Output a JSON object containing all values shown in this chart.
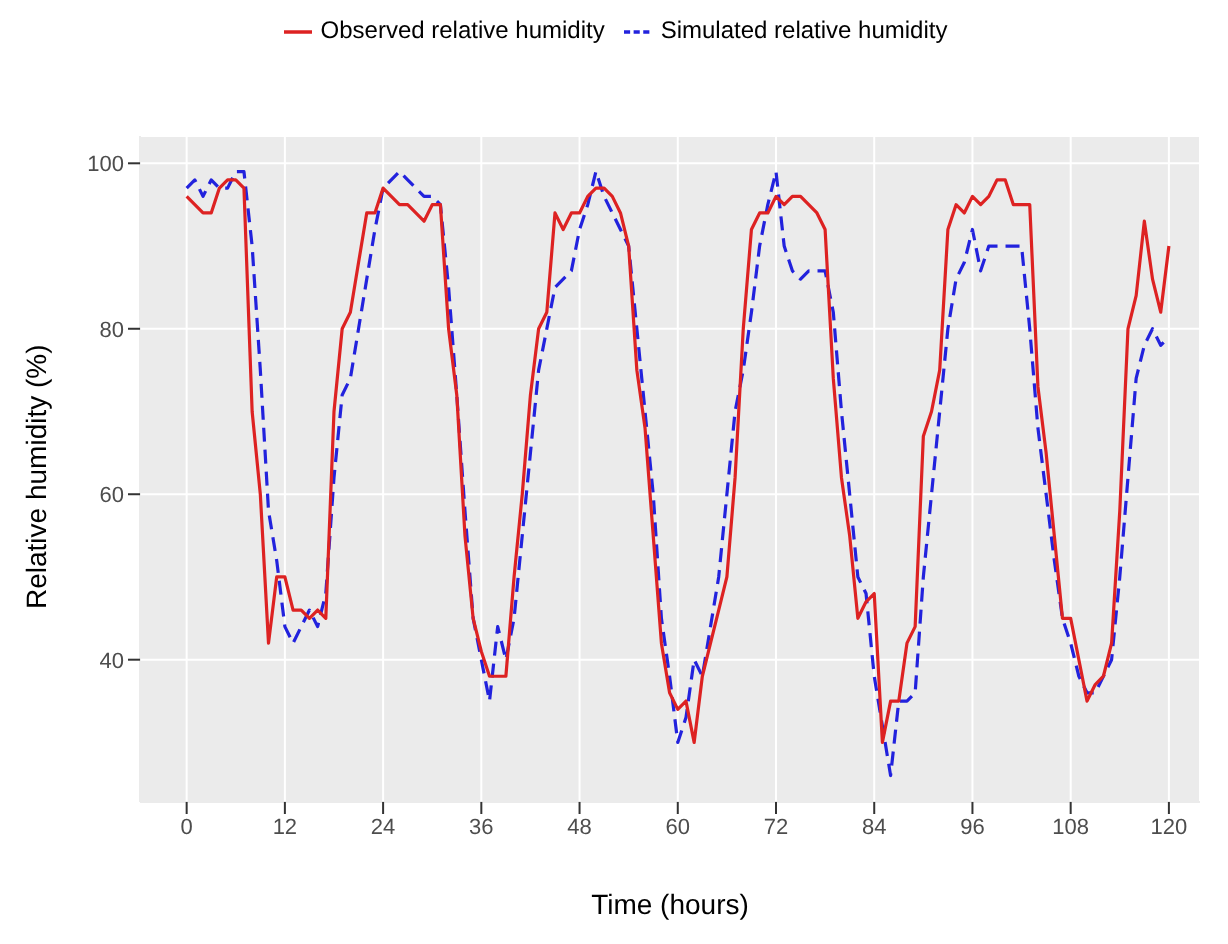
{
  "chart_data": {
    "type": "line",
    "xlabel": "Time (hours)",
    "ylabel": "Relative humidity (%)",
    "x": [
      0,
      1,
      2,
      3,
      4,
      5,
      6,
      7,
      8,
      9,
      10,
      11,
      12,
      13,
      14,
      15,
      16,
      17,
      18,
      19,
      20,
      21,
      22,
      23,
      24,
      25,
      26,
      27,
      28,
      29,
      30,
      31,
      32,
      33,
      34,
      35,
      36,
      37,
      38,
      39,
      40,
      41,
      42,
      43,
      44,
      45,
      46,
      47,
      48,
      49,
      50,
      51,
      52,
      53,
      54,
      55,
      56,
      57,
      58,
      59,
      60,
      61,
      62,
      63,
      64,
      65,
      66,
      67,
      68,
      69,
      70,
      71,
      72,
      73,
      74,
      75,
      76,
      77,
      78,
      79,
      80,
      81,
      82,
      83,
      84,
      85,
      86,
      87,
      88,
      89,
      90,
      91,
      92,
      93,
      94,
      95,
      96,
      97,
      98,
      99,
      100,
      101,
      102,
      103,
      104,
      105,
      106,
      107,
      108,
      109,
      110,
      111,
      112,
      113,
      114,
      115,
      116,
      117,
      118,
      119,
      120
    ],
    "series": [
      {
        "name": "Simulated relative humidity",
        "color": "#2222dd",
        "line_style": "dashed",
        "values": [
          97,
          98,
          96,
          98,
          97,
          97,
          99,
          99,
          90,
          75,
          58,
          52,
          44,
          42,
          44,
          46,
          44,
          48,
          62,
          72,
          74,
          80,
          86,
          92,
          97,
          98,
          99,
          98,
          97,
          96,
          96,
          95,
          85,
          72,
          58,
          45,
          40,
          35,
          44,
          40,
          45,
          55,
          65,
          75,
          80,
          85,
          86,
          87,
          92,
          95,
          99,
          96,
          94,
          92,
          90,
          80,
          70,
          60,
          45,
          38,
          30,
          33,
          40,
          38,
          44,
          50,
          60,
          70,
          75,
          82,
          90,
          95,
          99,
          90,
          87,
          86,
          87,
          87,
          87,
          82,
          70,
          60,
          50,
          48,
          38,
          32,
          26,
          35,
          35,
          36,
          50,
          60,
          70,
          80,
          86,
          88,
          92,
          87,
          90,
          90,
          90,
          90,
          90,
          80,
          68,
          60,
          52,
          45,
          42,
          38,
          36,
          36,
          38,
          40,
          50,
          62,
          74,
          78,
          80,
          78,
          79
        ]
      },
      {
        "name": "Observed relative humidity",
        "color": "#dd2222",
        "line_style": "solid",
        "values": [
          96,
          95,
          94,
          94,
          97,
          98,
          98,
          97,
          70,
          60,
          42,
          50,
          50,
          46,
          46,
          45,
          46,
          45,
          70,
          80,
          82,
          88,
          94,
          94,
          97,
          96,
          95,
          95,
          94,
          93,
          95,
          95,
          80,
          72,
          55,
          45,
          41,
          38,
          38,
          38,
          50,
          60,
          72,
          80,
          82,
          94,
          92,
          94,
          94,
          96,
          97,
          97,
          96,
          94,
          90,
          75,
          68,
          55,
          42,
          36,
          34,
          35,
          30,
          38,
          42,
          46,
          50,
          62,
          80,
          92,
          94,
          94,
          96,
          95,
          96,
          96,
          95,
          94,
          92,
          74,
          62,
          55,
          45,
          47,
          48,
          30,
          35,
          35,
          42,
          44,
          67,
          70,
          75,
          92,
          95,
          94,
          96,
          95,
          96,
          98,
          98,
          95,
          95,
          95,
          73,
          65,
          55,
          45,
          45,
          40,
          35,
          37,
          38,
          42,
          58,
          80,
          84,
          93,
          86,
          82,
          90
        ]
      }
    ],
    "xlim": [
      -5.7,
      123.8
    ],
    "ylim": [
      22.8,
      103.3
    ],
    "xticks": [
      0,
      12,
      24,
      36,
      48,
      60,
      72,
      84,
      96,
      108,
      120
    ],
    "yticks": [
      40,
      60,
      80,
      100
    ],
    "grid": true,
    "legend": "top",
    "marker": "none"
  }
}
